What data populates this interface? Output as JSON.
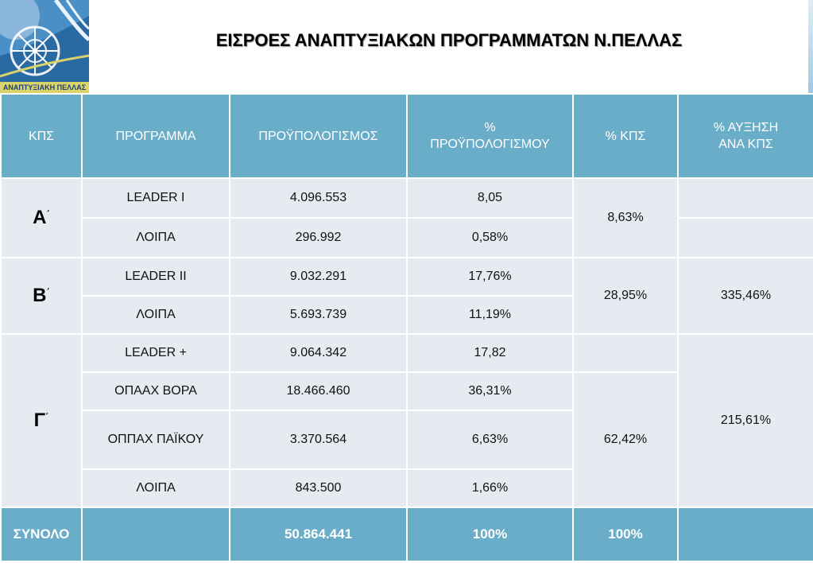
{
  "logo": {
    "icon": "development-agency-logo-icon",
    "caption": "ΑΝΑΠΤΥΞΙΑΚΗ ΠΕΛΛΑΣ",
    "colors": {
      "sky": "#3f86bf",
      "band": "#d9d36a"
    }
  },
  "title": "ΕΙΣΡΟΕΣ ΑΝΑΠΤΥΞΙΑΚΩΝ ΠΡΟΓΡΑΜΜΑΤΩΝ Ν.ΠΕΛΛΑΣ",
  "colors": {
    "header": "#6aadc9",
    "cell": "#e6ebf1"
  },
  "table": {
    "headers": {
      "kps": "ΚΠΣ",
      "program": "ΠΡΟΓΡΑΜΜΑ",
      "budget": "ΠΡΟΫΠΟΛΟΓΙΣΜΟΣ",
      "pct_budget_line1": "%",
      "pct_budget_line2": "ΠΡΟΫΠΟΛΟΓΙΣΜΟΥ",
      "pct_kps": "% ΚΠΣ",
      "growth_line1": "% ΑΥΞΗΣΗ",
      "growth_line2": "ΑΝΑ ΚΠΣ"
    },
    "groups": {
      "a": {
        "label": "Α",
        "mark": "΄",
        "pct_kps": "8,63%",
        "rows": [
          {
            "program": "LEADER I",
            "budget": "4.096.553",
            "pct": "8,05"
          },
          {
            "program": "ΛΟΙΠΑ",
            "budget": "296.992",
            "pct": "0,58%"
          }
        ]
      },
      "b": {
        "label": "Β",
        "mark": "΄",
        "pct_kps": "28,95%",
        "growth": "335,46%",
        "rows": [
          {
            "program": "LEADER II",
            "budget": "9.032.291",
            "pct": "17,76%"
          },
          {
            "program": "ΛΟΙΠΑ",
            "budget": "5.693.739",
            "pct": "11,19%"
          }
        ]
      },
      "c": {
        "label": "Γ",
        "mark": "΄",
        "pct_kps": "62,42%",
        "growth": "215,61%",
        "rows": [
          {
            "program": "LEADER +",
            "budget": "9.064.342",
            "pct": "17,82"
          },
          {
            "program": "ΟΠΑΑΧ ΒΟΡΑ",
            "budget": "18.466.460",
            "pct": "36,31%"
          },
          {
            "program": "ΟΠΠΑΧ ΠΑΪΚΟΥ",
            "budget": "3.370.564",
            "pct": "6,63%"
          },
          {
            "program": "ΛΟΙΠΑ",
            "budget": "843.500",
            "pct": "1,66%"
          }
        ]
      }
    },
    "total": {
      "label": "ΣΥΝΟΛΟ",
      "budget": "50.864.441",
      "pct": "100%",
      "pct_kps": "100%"
    }
  }
}
